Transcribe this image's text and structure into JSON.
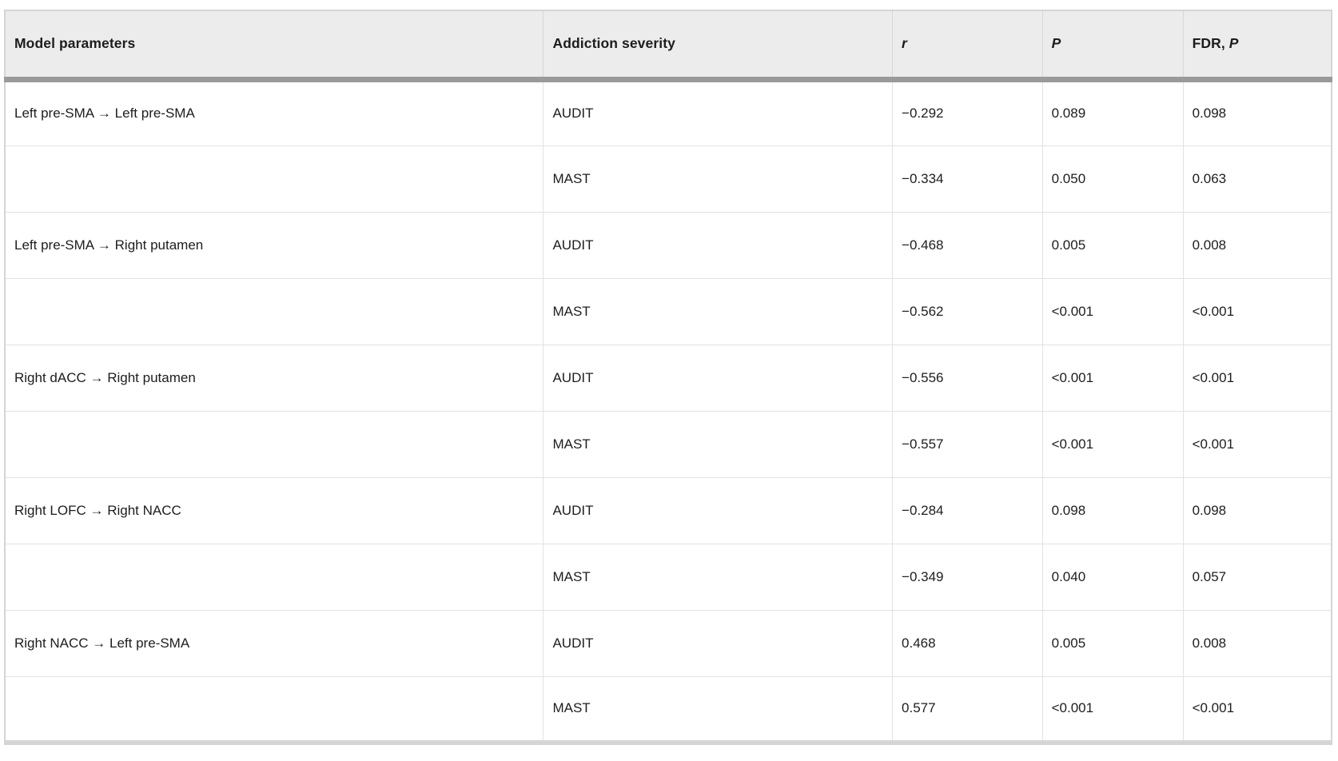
{
  "colors": {
    "page_bg": "#ffffff",
    "header_bg": "#ececec",
    "header_rule": "#9a9a9a",
    "grid_line": "#e2e2e2",
    "outer_border": "#d5d5d5",
    "text": "#1d1d1d"
  },
  "table": {
    "columns": [
      {
        "id": "model-parameters",
        "label": "Model parameters"
      },
      {
        "id": "addiction-severity",
        "label": "Addiction severity"
      },
      {
        "id": "r",
        "label": "r"
      },
      {
        "id": "p",
        "label": "P"
      },
      {
        "id": "fdr-p",
        "label_plain": "FDR, ",
        "label_italic": "P"
      }
    ],
    "rows": [
      {
        "model_parameter": "Left pre-SMA → Left pre-SMA",
        "addiction_severity": "AUDIT",
        "r": "−0.292",
        "p": "0.089",
        "fdr_p": "0.098"
      },
      {
        "model_parameter": "",
        "addiction_severity": "MAST",
        "r": "−0.334",
        "p": "0.050",
        "fdr_p": "0.063"
      },
      {
        "model_parameter": "Left pre-SMA → Right putamen",
        "addiction_severity": "AUDIT",
        "r": "−0.468",
        "p": "0.005",
        "fdr_p": "0.008"
      },
      {
        "model_parameter": "",
        "addiction_severity": "MAST",
        "r": "−0.562",
        "p": "<0.001",
        "fdr_p": "<0.001"
      },
      {
        "model_parameter": "Right dACC → Right putamen",
        "addiction_severity": "AUDIT",
        "r": "−0.556",
        "p": "<0.001",
        "fdr_p": "<0.001"
      },
      {
        "model_parameter": "",
        "addiction_severity": "MAST",
        "r": "−0.557",
        "p": "<0.001",
        "fdr_p": "<0.001"
      },
      {
        "model_parameter": "Right LOFC → Right NACC",
        "addiction_severity": "AUDIT",
        "r": "−0.284",
        "p": "0.098",
        "fdr_p": "0.098"
      },
      {
        "model_parameter": "",
        "addiction_severity": "MAST",
        "r": "−0.349",
        "p": "0.040",
        "fdr_p": "0.057"
      },
      {
        "model_parameter": "Right NACC → Left pre-SMA",
        "addiction_severity": "AUDIT",
        "r": "0.468",
        "p": "0.005",
        "fdr_p": "0.008"
      },
      {
        "model_parameter": "",
        "addiction_severity": "MAST",
        "r": "0.577",
        "p": "<0.001",
        "fdr_p": "<0.001"
      }
    ]
  }
}
